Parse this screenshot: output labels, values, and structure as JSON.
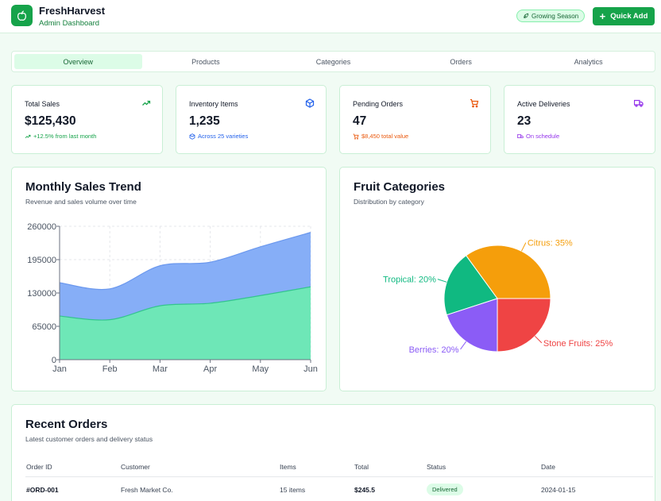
{
  "header": {
    "title": "FreshHarvest",
    "subtitle": "Admin Dashboard",
    "badge": "Growing Season",
    "quick_add_label": "Quick Add"
  },
  "tabs": [
    {
      "label": "Overview",
      "active": true
    },
    {
      "label": "Products",
      "active": false
    },
    {
      "label": "Categories",
      "active": false
    },
    {
      "label": "Orders",
      "active": false
    },
    {
      "label": "Analytics",
      "active": false
    }
  ],
  "stats": [
    {
      "label": "Total Sales",
      "value": "$125,430",
      "sub": "+12.5% from last month",
      "icon": "trending-up-icon",
      "color": "#16a34a"
    },
    {
      "label": "Inventory Items",
      "value": "1,235",
      "sub": "Across 25 varieties",
      "icon": "package-icon",
      "color": "#2563eb"
    },
    {
      "label": "Pending Orders",
      "value": "47",
      "sub": "$8,450 total value",
      "icon": "cart-icon",
      "color": "#ea580c"
    },
    {
      "label": "Active Deliveries",
      "value": "23",
      "sub": "On schedule",
      "icon": "truck-icon",
      "color": "#9333ea"
    }
  ],
  "sales_panel": {
    "title": "Monthly Sales Trend",
    "subtitle": "Revenue and sales volume over time"
  },
  "category_panel": {
    "title": "Fruit Categories",
    "subtitle": "Distribution by category"
  },
  "orders_panel": {
    "title": "Recent Orders",
    "subtitle": "Latest customer orders and delivery status",
    "columns": [
      "Order ID",
      "Customer",
      "Items",
      "Total",
      "Status",
      "Date"
    ],
    "rows": [
      {
        "id": "#ORD-001",
        "customer": "Fresh Market Co.",
        "items": "15 items",
        "total": "$245.5",
        "status": "Delivered",
        "date": "2024-01-15"
      }
    ]
  },
  "chart_data": [
    {
      "type": "area",
      "x": [
        "Jan",
        "Feb",
        "Mar",
        "Apr",
        "May",
        "Jun"
      ],
      "series": [
        {
          "values": [
            85000,
            78000,
            105000,
            110000,
            125000,
            142000
          ],
          "color": "#6ee7b7"
        },
        {
          "values": [
            150000,
            138000,
            183000,
            190000,
            220000,
            248000
          ],
          "color": "#86aef7"
        }
      ],
      "ylim": [
        0,
        260000
      ],
      "yticks": [
        "0",
        "65000",
        "130000",
        "195000",
        "260000"
      ],
      "grid": true
    },
    {
      "type": "pie",
      "slices": [
        {
          "label": "Citrus: 35%",
          "value": 35,
          "color": "#f59e0b"
        },
        {
          "label": "Tropical: 20%",
          "value": 20,
          "color": "#10b981"
        },
        {
          "label": "Berries: 20%",
          "value": 20,
          "color": "#8b5cf6"
        },
        {
          "label": "Stone Fruits: 25%",
          "value": 25,
          "color": "#ef4444"
        }
      ]
    }
  ]
}
